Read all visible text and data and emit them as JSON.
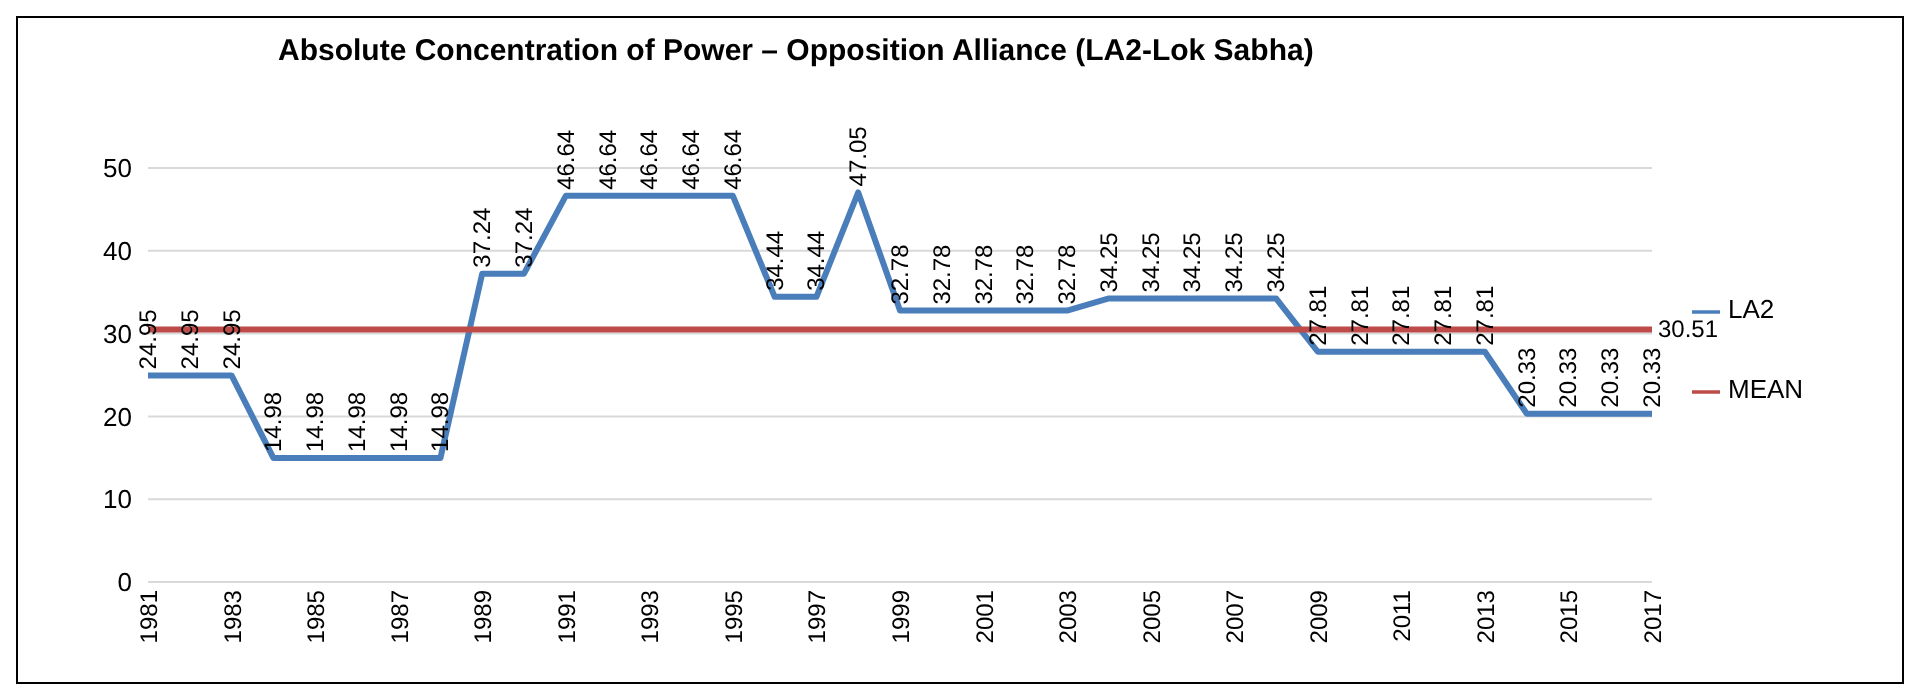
{
  "chart_data": {
    "type": "line",
    "title": "Absolute Concentration of Power – Opposition Alliance (LA2-Lok Sabha)",
    "categories": [
      "1981",
      null,
      "1983",
      null,
      "1985",
      null,
      "1987",
      null,
      "1989",
      null,
      "1991",
      null,
      "1993",
      null,
      "1995",
      null,
      "1997",
      null,
      "1999",
      null,
      "2001",
      null,
      "2003",
      null,
      "2005",
      null,
      "2007",
      null,
      "2009",
      null,
      "2011",
      null,
      "2013",
      null,
      "2015",
      null,
      "2017"
    ],
    "series": [
      {
        "name": "LA2",
        "color": "#4a7ebb",
        "values": [
          24.95,
          24.95,
          24.95,
          14.98,
          14.98,
          14.98,
          14.98,
          14.98,
          37.24,
          37.24,
          46.64,
          46.64,
          46.64,
          46.64,
          46.64,
          34.44,
          34.44,
          47.05,
          32.78,
          32.78,
          32.78,
          32.78,
          32.78,
          34.25,
          34.25,
          34.25,
          34.25,
          34.25,
          27.81,
          27.81,
          27.81,
          27.81,
          27.81,
          20.33,
          20.33,
          20.33,
          20.33
        ],
        "value_labels": [
          "24.95",
          "24.95",
          "24.95",
          "14.98",
          "14.98",
          "14.98",
          "14.98",
          "14.98",
          "37.24",
          "37.24",
          "46.64",
          "46.64",
          "46.64",
          "46.64",
          "46.64",
          "34.44",
          "34.44",
          "47.05",
          "32.78",
          "32.78",
          "32.78",
          "32.78",
          "32.78",
          "34.25",
          "34.25",
          "34.25",
          "34.25",
          "34.25",
          "27.81",
          "27.81",
          "27.81",
          "27.81",
          "27.81",
          "20.33",
          "20.33",
          "20.33",
          "20.33"
        ]
      },
      {
        "name": "MEAN",
        "color": "#be4b48",
        "values": [
          30.51,
          30.51,
          30.51,
          30.51,
          30.51,
          30.51,
          30.51,
          30.51,
          30.51,
          30.51,
          30.51,
          30.51,
          30.51,
          30.51,
          30.51,
          30.51,
          30.51,
          30.51,
          30.51,
          30.51,
          30.51,
          30.51,
          30.51,
          30.51,
          30.51,
          30.51,
          30.51,
          30.51,
          30.51,
          30.51,
          30.51,
          30.51,
          30.51,
          30.51,
          30.51,
          30.51,
          30.51
        ],
        "value_labels": [
          null,
          null,
          null,
          null,
          null,
          null,
          null,
          null,
          null,
          null,
          null,
          null,
          null,
          null,
          null,
          null,
          null,
          null,
          null,
          null,
          null,
          null,
          null,
          null,
          null,
          null,
          null,
          null,
          null,
          null,
          null,
          null,
          null,
          null,
          null,
          null,
          "30.51"
        ]
      }
    ],
    "ylim": [
      0,
      50
    ],
    "yticks": [
      0,
      10,
      20,
      30,
      40,
      50
    ],
    "grid": "y",
    "legend": "right",
    "marker": "none",
    "line_style": "solid"
  }
}
